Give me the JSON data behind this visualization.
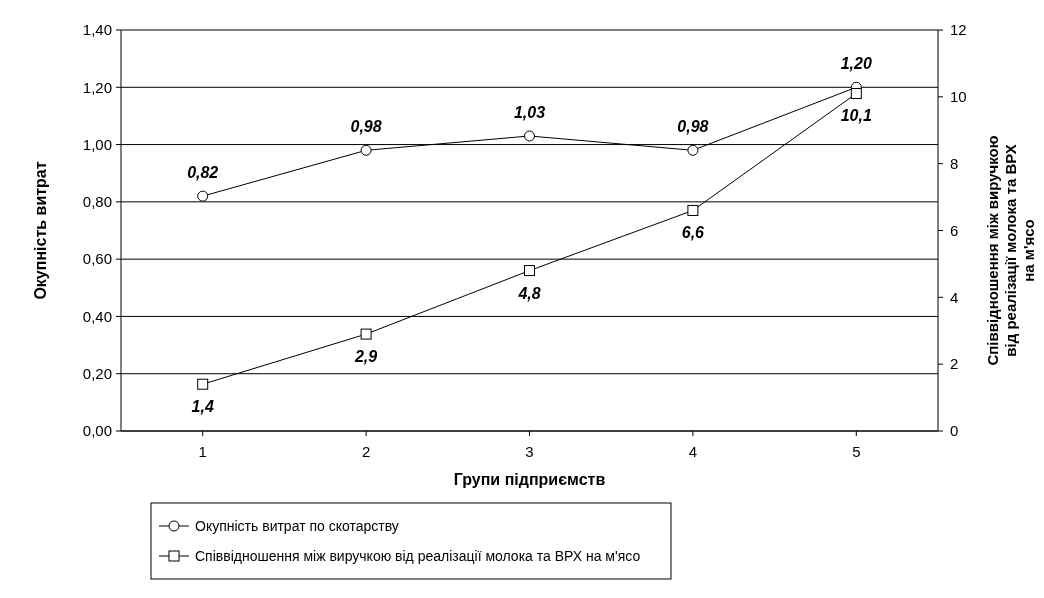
{
  "chart_data": {
    "type": "line",
    "xlabel": "Групи підприємств",
    "ylabel": "Окупність витрат",
    "y2label": "Співвідношення між виручкою від реалізації молока та ВРХ на м'ясо",
    "categories": [
      "1",
      "2",
      "3",
      "4",
      "5"
    ],
    "series": [
      {
        "name": "Окупність витрат по скотарству",
        "color": "#000000",
        "marker": "circle",
        "values": [
          0.82,
          0.98,
          1.03,
          0.98,
          1.2
        ],
        "value_labels": [
          "0,82",
          "0,98",
          "1,03",
          "0,98",
          "1,20"
        ]
      },
      {
        "name": "Співвідношення між виручкою від реалізації молока та ВРХ на м'ясо",
        "color": "#000000",
        "marker": "square",
        "axis": "y2",
        "values": [
          1.4,
          2.9,
          4.8,
          6.6,
          10.1
        ],
        "value_labels": [
          "1,4",
          "2,9",
          "4,8",
          "6,6",
          "10,1"
        ]
      }
    ],
    "ylim": [
      0,
      1.4
    ],
    "yticks": [
      {
        "value": 0,
        "label": "0,00"
      },
      {
        "value": 0.2,
        "label": "0,20"
      },
      {
        "value": 0.4,
        "label": "0,40"
      },
      {
        "value": 0.6,
        "label": "0,60"
      },
      {
        "value": 0.8,
        "label": "0,80"
      },
      {
        "value": 1,
        "label": "1,00"
      },
      {
        "value": 1.2,
        "label": "1,20"
      },
      {
        "value": 1.4,
        "label": "1,40"
      }
    ],
    "y2lim": [
      0,
      12
    ],
    "y2ticks": [
      0,
      2,
      4,
      6,
      8,
      10,
      12
    ],
    "grid": "y",
    "legend": "bottom",
    "line_style": "solid"
  }
}
